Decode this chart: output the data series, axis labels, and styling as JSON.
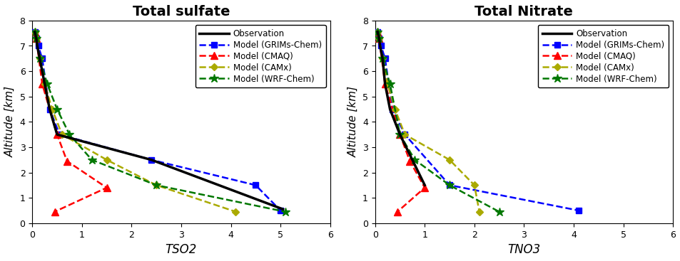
{
  "sulfate": {
    "title": "Total sulfate",
    "xlabel": "TSO2",
    "ylabel": "Altitude [km]",
    "xlim": [
      0,
      6
    ],
    "ylim": [
      0,
      8
    ],
    "obs": {
      "x": [
        0.05,
        0.08,
        0.1,
        0.15,
        0.2,
        0.35,
        0.5,
        2.4,
        5.05
      ],
      "y": [
        7.55,
        7.3,
        7.0,
        6.5,
        6.0,
        4.5,
        3.5,
        2.5,
        0.55
      ]
    },
    "grims": {
      "x": [
        0.05,
        0.08,
        0.12,
        0.2,
        0.35,
        0.55,
        2.4,
        4.5,
        5.0
      ],
      "y": [
        7.55,
        7.3,
        7.0,
        6.5,
        4.5,
        3.5,
        2.5,
        1.5,
        0.5
      ]
    },
    "cmaq": {
      "x": [
        0.05,
        0.08,
        0.2,
        0.5,
        0.7,
        1.5,
        0.45
      ],
      "y": [
        7.55,
        7.3,
        5.5,
        3.5,
        2.45,
        1.4,
        0.45
      ]
    },
    "camx": {
      "x": [
        0.05,
        0.08,
        0.15,
        0.25,
        0.4,
        0.6,
        1.5,
        2.5,
        4.1
      ],
      "y": [
        7.55,
        7.3,
        6.5,
        5.5,
        4.5,
        3.5,
        2.5,
        1.5,
        0.45
      ]
    },
    "wrf": {
      "x": [
        0.05,
        0.08,
        0.15,
        0.3,
        0.5,
        0.75,
        1.2,
        2.5,
        5.1
      ],
      "y": [
        7.55,
        7.3,
        6.5,
        5.5,
        4.5,
        3.5,
        2.5,
        1.5,
        0.45
      ]
    }
  },
  "nitrate": {
    "title": "Total Nitrate",
    "xlabel": "TNO3",
    "ylabel": "Altitude [km]",
    "xlim": [
      0,
      6
    ],
    "ylim": [
      0,
      8
    ],
    "obs": {
      "x": [
        0.05,
        0.08,
        0.1,
        0.15,
        0.2,
        0.3,
        0.5,
        1.0
      ],
      "y": [
        7.55,
        7.3,
        7.0,
        6.5,
        5.5,
        4.5,
        3.5,
        1.5
      ]
    },
    "grims": {
      "x": [
        0.05,
        0.08,
        0.12,
        0.2,
        0.35,
        0.6,
        1.5,
        4.1
      ],
      "y": [
        7.55,
        7.3,
        7.0,
        6.5,
        4.5,
        3.5,
        1.5,
        0.5
      ]
    },
    "cmaq": {
      "x": [
        0.05,
        0.08,
        0.2,
        0.5,
        0.7,
        1.0,
        0.45
      ],
      "y": [
        7.55,
        7.3,
        5.5,
        3.5,
        2.45,
        1.4,
        0.45
      ]
    },
    "camx": {
      "x": [
        0.05,
        0.08,
        0.15,
        0.25,
        0.4,
        0.6,
        1.5,
        2.0,
        2.1
      ],
      "y": [
        7.55,
        7.3,
        6.5,
        5.5,
        4.5,
        3.5,
        2.5,
        1.5,
        0.45
      ]
    },
    "wrf": {
      "x": [
        0.05,
        0.08,
        0.15,
        0.3,
        0.5,
        0.8,
        1.5,
        2.5
      ],
      "y": [
        7.55,
        7.3,
        6.5,
        5.5,
        3.5,
        2.5,
        1.5,
        0.45
      ]
    }
  },
  "legend_labels": [
    "Observation",
    "Model (GRIMs-Chem)",
    "Model (CMAQ)",
    "Model (CAMx)",
    "Model (WRF-Chem)"
  ],
  "colors": {
    "obs": "#000000",
    "grims": "#0000ff",
    "cmaq": "#ff0000",
    "camx": "#aaaa00",
    "wrf": "#007700"
  },
  "background": "#ffffff"
}
